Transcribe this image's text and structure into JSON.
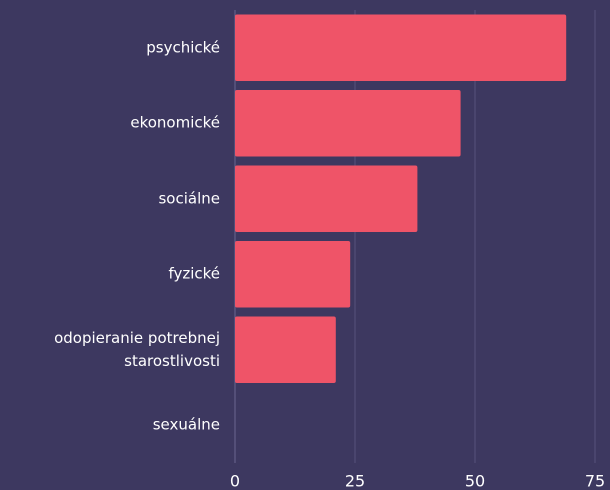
{
  "chart_data": {
    "type": "barh",
    "categories": [
      "psychické",
      "ekonomické",
      "sociálne",
      "fyzické",
      "odopieranie potrebnej starostlivosti",
      "sexuálne"
    ],
    "values": [
      69,
      47,
      38,
      24,
      21,
      0
    ],
    "color": "#ef5468",
    "xlim": [
      0,
      75
    ],
    "xticks": [
      0,
      25,
      50,
      75
    ],
    "grid": true
  }
}
